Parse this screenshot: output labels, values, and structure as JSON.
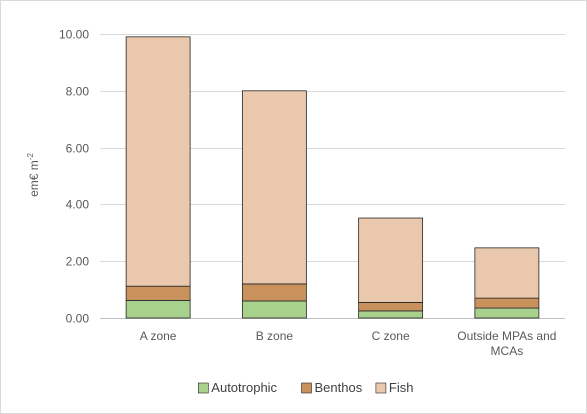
{
  "chart_data": {
    "type": "bar",
    "stacked": true,
    "categories": [
      [
        "A zone"
      ],
      [
        "B zone"
      ],
      [
        "C zone"
      ],
      [
        "Outside MPAs and",
        "MCAs"
      ]
    ],
    "series": [
      {
        "name": "Autotrophic",
        "color": "#a9d18e",
        "values": [
          0.62,
          0.6,
          0.25,
          0.35
        ]
      },
      {
        "name": "Benthos",
        "color": "#c9925c",
        "values": [
          0.5,
          0.6,
          0.3,
          0.35
        ]
      },
      {
        "name": "Fish",
        "color": "#e9c8ad",
        "values": [
          8.78,
          6.8,
          2.97,
          1.77
        ]
      }
    ],
    "ylabel": "em€ m",
    "ylabel_superscript": "-2",
    "ylim": [
      0,
      10
    ],
    "yticks": [
      "0.00",
      "2.00",
      "4.00",
      "6.00",
      "8.00",
      "10.00"
    ],
    "grid": true,
    "legend": "bottom"
  }
}
